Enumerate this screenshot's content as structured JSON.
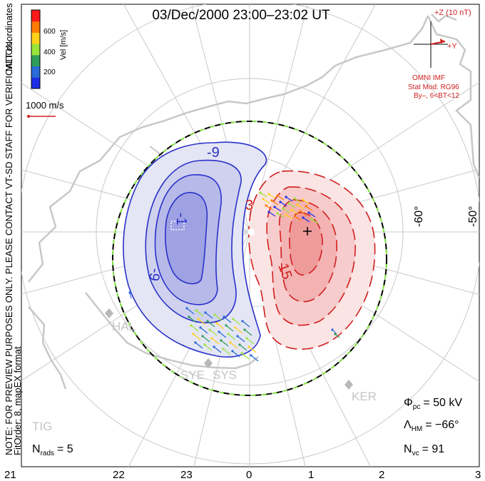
{
  "title": "03/Dec/2000 23:00–23:02 UT",
  "side_labels": {
    "line1": "NOTE: FOR PREVIEW PURPOSES ONLY. PLEASE CONTACT VT-SD STAFF FOR VERIFICATION.",
    "line2": "FitOrder: 8, mapEX format",
    "mlt": "MLT coordinates"
  },
  "colorbar": {
    "label": "Vel [m/s]",
    "ticks": [
      "600",
      "400",
      "200"
    ],
    "colors": [
      "#ff1a1a",
      "#ff7a00",
      "#ffd21a",
      "#9be53a",
      "#2e9e5a",
      "#2a6bd8",
      "#1f2ce6"
    ]
  },
  "ref_vector": "1000 m/s",
  "imf": {
    "z_label": "+Z (10 nT)",
    "y_label": "+Y",
    "source": "OMNI IMF",
    "model": "Stat Mod: RG96",
    "condition": "By–, 6<BT<12"
  },
  "lat_labels": [
    "-60°",
    "-50°"
  ],
  "contour_labels": [
    "-9",
    "-1",
    "-9",
    "3",
    "15"
  ],
  "stations": [
    "HAL",
    "SYE",
    "SYS",
    "KER",
    "TIG"
  ],
  "mlt_ticks": [
    "21",
    "22",
    "23",
    "0",
    "1",
    "2",
    "3"
  ],
  "stats": {
    "phi_sym": "Φ",
    "phi_sub": "pc",
    "phi_value": "=  50 kV",
    "lambda_sym": "Λ",
    "lambda_sub": "HM",
    "lambda_value": "=  −66°",
    "nvc_sym": "N",
    "nvc_sub": "vc",
    "nvc_value": "=  91",
    "nrads_sym": "N",
    "nrads_sub": "rads",
    "nrads_value": "=  5"
  },
  "pattern_colors": {
    "negative_cell": "#2a32c8",
    "positive_cell": "#d01f1f",
    "boundary_dash": "#7be03a",
    "coast": "#c8c8c8"
  }
}
